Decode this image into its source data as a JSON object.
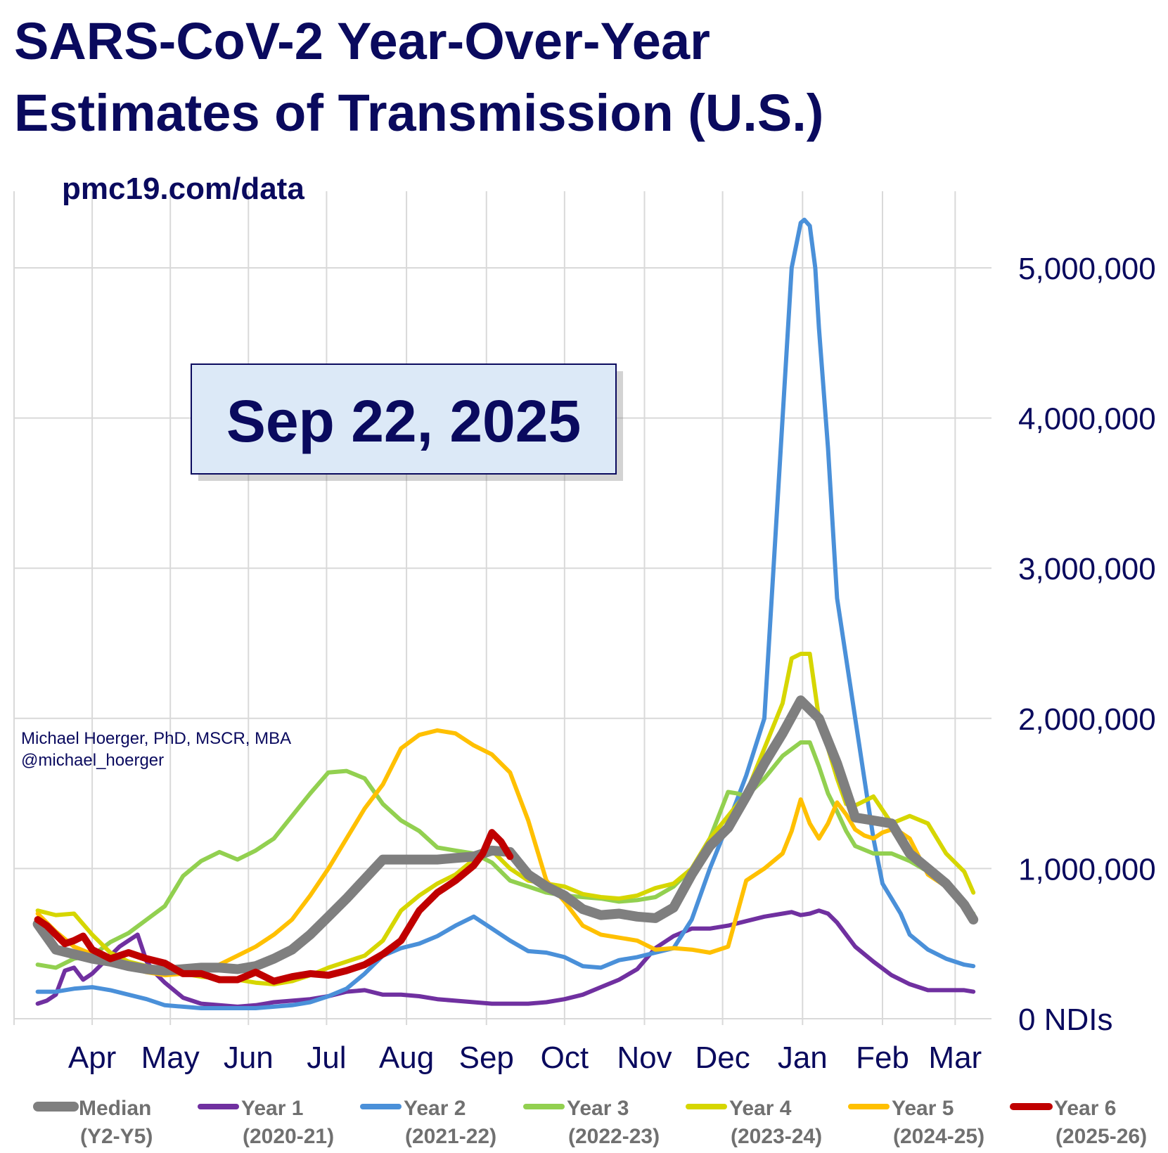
{
  "title_line1": "SARS-CoV-2 Year-Over-Year",
  "title_line2": "Estimates of Transmission (U.S.)",
  "source": "pmc19.com/data",
  "author_line1": "Michael Hoerger, PhD, MSCR, MBA",
  "author_line2": "@michael_hoerger",
  "date_box": "Sep 22, 2025",
  "chart_data": {
    "type": "line",
    "title": "SARS-CoV-2 Year-Over-Year Estimates of Transmission (U.S.)",
    "ylabel_unit": "NDIs",
    "ylim": [
      0,
      5000000
    ],
    "yticks": [
      {
        "value": 0,
        "label": "0  NDIs"
      },
      {
        "value": 1000000,
        "label": "1,000,000"
      },
      {
        "value": 2000000,
        "label": "2,000,000"
      },
      {
        "value": 3000000,
        "label": "3,000,000"
      },
      {
        "value": 4000000,
        "label": "4,000,000"
      },
      {
        "value": 5000000,
        "label": "5,000,000"
      }
    ],
    "x_unit": "week (0 = start of April)",
    "xticks": [
      {
        "x": 0,
        "label": "Apr"
      },
      {
        "x": 4.3,
        "label": "May"
      },
      {
        "x": 8.6,
        "label": "Jun"
      },
      {
        "x": 12.9,
        "label": "Jul"
      },
      {
        "x": 17.3,
        "label": "Aug"
      },
      {
        "x": 21.7,
        "label": "Sep"
      },
      {
        "x": 26.0,
        "label": "Oct"
      },
      {
        "x": 30.4,
        "label": "Nov"
      },
      {
        "x": 34.7,
        "label": "Dec"
      },
      {
        "x": 39.1,
        "label": "Jan"
      },
      {
        "x": 43.5,
        "label": "Feb"
      },
      {
        "x": 47.5,
        "label": "Mar"
      }
    ],
    "xlim": [
      -4.3,
      49.5
    ],
    "grid": true,
    "legend_position": "bottom",
    "series": [
      {
        "name": "Median",
        "sub": "(Y2-Y5)",
        "color": "#7f7f7f",
        "width": 14,
        "x": [
          -3,
          -2,
          -1,
          0,
          1,
          2,
          3,
          4,
          5,
          6,
          7,
          8,
          9,
          10,
          11,
          12,
          13,
          14,
          15,
          16,
          17,
          18,
          19,
          20,
          21,
          22,
          23,
          24,
          25,
          26,
          27,
          28,
          29,
          30,
          31,
          32,
          33,
          34,
          35,
          36,
          37,
          38,
          39,
          40,
          41,
          42,
          43,
          44,
          45,
          46,
          47,
          48,
          48.5
        ],
        "y": [
          630000,
          460000,
          430000,
          400000,
          380000,
          350000,
          330000,
          320000,
          330000,
          340000,
          340000,
          330000,
          350000,
          400000,
          460000,
          560000,
          680000,
          800000,
          930000,
          1060000,
          1060000,
          1060000,
          1060000,
          1070000,
          1080000,
          1120000,
          1110000,
          960000,
          880000,
          820000,
          730000,
          690000,
          700000,
          680000,
          670000,
          740000,
          960000,
          1150000,
          1270000,
          1480000,
          1700000,
          1900000,
          2120000,
          2000000,
          1700000,
          1340000,
          1320000,
          1300000,
          1100000,
          1000000,
          900000,
          760000,
          660000
        ]
      },
      {
        "name": "Year 1",
        "sub": "(2020-21)",
        "color": "#7030a0",
        "width": 6,
        "x": [
          -3,
          -2.5,
          -2,
          -1.5,
          -1,
          -0.5,
          0,
          1,
          1.5,
          2,
          2.5,
          3,
          3.5,
          4,
          5,
          6,
          7,
          8,
          9,
          10,
          11,
          12,
          13,
          14,
          15,
          16,
          17,
          18,
          19,
          20,
          21,
          22,
          23,
          24,
          25,
          26,
          27,
          28,
          29,
          30,
          31,
          32,
          33,
          34,
          35,
          36,
          37,
          38,
          38.5,
          39,
          39.5,
          40,
          40.5,
          41,
          42,
          43,
          44,
          45,
          46,
          47,
          48,
          48.5
        ],
        "y": [
          100000,
          120000,
          160000,
          320000,
          340000,
          260000,
          300000,
          420000,
          480000,
          520000,
          560000,
          380000,
          300000,
          240000,
          140000,
          100000,
          90000,
          80000,
          90000,
          110000,
          120000,
          130000,
          150000,
          180000,
          190000,
          160000,
          160000,
          150000,
          130000,
          120000,
          110000,
          100000,
          100000,
          100000,
          110000,
          130000,
          160000,
          210000,
          260000,
          330000,
          470000,
          550000,
          600000,
          600000,
          620000,
          650000,
          680000,
          700000,
          710000,
          690000,
          700000,
          720000,
          700000,
          640000,
          480000,
          380000,
          290000,
          230000,
          190000,
          190000,
          190000,
          180000
        ]
      },
      {
        "name": "Year 2",
        "sub": "(2021-22)",
        "color": "#4a90d9",
        "width": 6,
        "x": [
          -3,
          -2,
          -1,
          0,
          1,
          2,
          3,
          4,
          5,
          6,
          7,
          8,
          9,
          10,
          11,
          12,
          13,
          14,
          15,
          16,
          17,
          18,
          19,
          20,
          21,
          21.5,
          22,
          23,
          24,
          25,
          26,
          27,
          28,
          29,
          30,
          31,
          32,
          33,
          34,
          35,
          36,
          37,
          37.5,
          38,
          38.5,
          39,
          39.2,
          39.5,
          39.8,
          40,
          40.5,
          41,
          41.5,
          42,
          42.5,
          43,
          43.5,
          44,
          44.5,
          45,
          46,
          47,
          48,
          48.5
        ],
        "y": [
          180000,
          180000,
          200000,
          210000,
          190000,
          160000,
          130000,
          90000,
          80000,
          70000,
          70000,
          70000,
          70000,
          80000,
          90000,
          110000,
          150000,
          200000,
          300000,
          420000,
          470000,
          500000,
          550000,
          620000,
          680000,
          640000,
          600000,
          520000,
          450000,
          440000,
          410000,
          350000,
          340000,
          390000,
          410000,
          440000,
          470000,
          660000,
          1000000,
          1300000,
          1620000,
          2000000,
          3000000,
          4000000,
          5000000,
          5300000,
          5320000,
          5280000,
          5000000,
          4600000,
          3800000,
          2800000,
          2400000,
          2000000,
          1600000,
          1200000,
          900000,
          800000,
          700000,
          560000,
          460000,
          400000,
          360000,
          350000
        ]
      },
      {
        "name": "Year 3",
        "sub": "(2022-23)",
        "color": "#92d050",
        "width": 6,
        "x": [
          -3,
          -2,
          -1,
          0,
          1,
          2,
          3,
          4,
          5,
          6,
          7,
          8,
          9,
          10,
          11,
          12,
          13,
          14,
          15,
          16,
          17,
          18,
          19,
          20,
          21,
          22,
          23,
          24,
          25,
          26,
          27,
          28,
          29,
          30,
          31,
          32,
          33,
          34,
          35,
          35.5,
          36,
          37,
          38,
          39,
          39.5,
          40,
          40.5,
          41,
          41.5,
          42,
          43,
          44,
          45,
          46,
          47,
          48,
          48.5
        ],
        "y": [
          360000,
          340000,
          400000,
          420000,
          510000,
          570000,
          660000,
          750000,
          950000,
          1050000,
          1110000,
          1060000,
          1120000,
          1200000,
          1350000,
          1500000,
          1640000,
          1650000,
          1600000,
          1430000,
          1320000,
          1250000,
          1140000,
          1120000,
          1100000,
          1040000,
          920000,
          880000,
          840000,
          820000,
          810000,
          800000,
          780000,
          790000,
          810000,
          880000,
          1000000,
          1200000,
          1510000,
          1500000,
          1480000,
          1600000,
          1750000,
          1840000,
          1840000,
          1680000,
          1500000,
          1380000,
          1250000,
          1150000,
          1100000,
          1100000,
          1050000,
          980000,
          880000,
          760000,
          700000
        ]
      },
      {
        "name": "Year 4",
        "sub": "(2023-24)",
        "color": "#d6d600",
        "width": 6,
        "x": [
          -3,
          -2,
          -1,
          0,
          1,
          2,
          3,
          4,
          5,
          6,
          7,
          8,
          9,
          10,
          11,
          12,
          13,
          14,
          15,
          16,
          17,
          18,
          19,
          20,
          21,
          22,
          23,
          24,
          25,
          26,
          27,
          28,
          29,
          30,
          31,
          32,
          33,
          34,
          35,
          36,
          37,
          38,
          38.5,
          39,
          39.5,
          40,
          40.5,
          41,
          41.5,
          42,
          43,
          44,
          45,
          46,
          47,
          48,
          48.5
        ],
        "y": [
          720000,
          690000,
          700000,
          560000,
          440000,
          380000,
          350000,
          320000,
          300000,
          280000,
          270000,
          260000,
          240000,
          230000,
          250000,
          290000,
          340000,
          380000,
          420000,
          520000,
          720000,
          820000,
          900000,
          960000,
          1060000,
          1120000,
          1000000,
          920000,
          900000,
          880000,
          830000,
          810000,
          800000,
          820000,
          870000,
          900000,
          1000000,
          1200000,
          1350000,
          1500000,
          1800000,
          2100000,
          2400000,
          2430000,
          2430000,
          2000000,
          1800000,
          1600000,
          1430000,
          1420000,
          1480000,
          1300000,
          1350000,
          1300000,
          1100000,
          980000,
          840000
        ]
      },
      {
        "name": "Year 5",
        "sub": "(2024-25)",
        "color": "#ffc000",
        "width": 6,
        "x": [
          -3,
          -2,
          -1,
          0,
          1,
          2,
          3,
          4,
          5,
          6,
          7,
          8,
          9,
          10,
          11,
          12,
          13,
          14,
          15,
          16,
          17,
          18,
          19,
          20,
          21,
          22,
          23,
          24,
          25,
          26,
          27,
          28,
          29,
          30,
          31,
          32,
          33,
          34,
          35,
          36,
          37,
          38,
          38.5,
          39,
          39.5,
          40,
          40.5,
          41,
          41.5,
          42,
          42.5,
          43,
          43.5,
          44,
          44.5,
          45,
          46,
          47,
          48,
          48.5
        ],
        "y": [
          700000,
          580000,
          480000,
          430000,
          380000,
          340000,
          310000,
          290000,
          300000,
          320000,
          360000,
          420000,
          480000,
          560000,
          660000,
          820000,
          1000000,
          1200000,
          1400000,
          1560000,
          1800000,
          1890000,
          1920000,
          1900000,
          1820000,
          1760000,
          1640000,
          1320000,
          920000,
          780000,
          620000,
          560000,
          540000,
          520000,
          460000,
          470000,
          460000,
          440000,
          480000,
          920000,
          1000000,
          1100000,
          1250000,
          1460000,
          1300000,
          1200000,
          1300000,
          1440000,
          1360000,
          1260000,
          1220000,
          1200000,
          1240000,
          1260000,
          1240000,
          1200000,
          960000,
          880000,
          740000,
          650000
        ]
      },
      {
        "name": "Year 6",
        "sub": "(2025-26)",
        "color": "#c00000",
        "width": 10,
        "x": [
          -3,
          -2.5,
          -2,
          -1.5,
          -1,
          -0.5,
          0,
          1,
          2,
          3,
          4,
          5,
          6,
          7,
          8,
          9,
          10,
          11,
          12,
          13,
          14,
          15,
          16,
          17,
          18,
          19,
          20,
          21,
          21.5,
          22,
          22.5,
          23
        ],
        "y": [
          660000,
          620000,
          560000,
          500000,
          520000,
          550000,
          460000,
          400000,
          440000,
          400000,
          370000,
          300000,
          300000,
          260000,
          260000,
          310000,
          250000,
          280000,
          300000,
          290000,
          320000,
          360000,
          430000,
          520000,
          720000,
          840000,
          920000,
          1020000,
          1100000,
          1240000,
          1180000,
          1080000
        ]
      }
    ]
  }
}
